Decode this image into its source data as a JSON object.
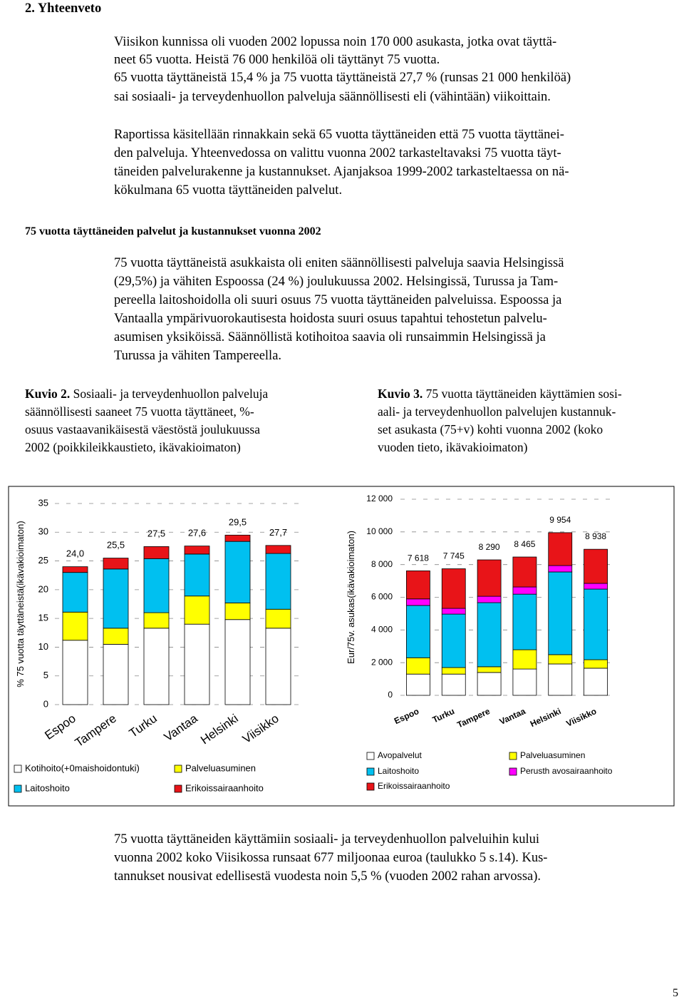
{
  "header": {
    "title": "2. Yhteenveto"
  },
  "paragraphs": [
    {
      "lines": [
        "Viisikon kunnissa oli vuoden 2002 lopussa noin 170 000 asukasta, jotka ovat täyttä-",
        "neet 65 vuotta. Heistä 76 000 henkilöä oli täyttänyt 75 vuotta.",
        "65 vuotta täyttäneistä 15,4 % ja 75 vuotta täyttäneistä 27,7 % (runsas 21 000 henkilöä)",
        "sai sosiaali- ja terveydenhuollon palveluja säännöllisesti eli (vähintään) viikoittain."
      ]
    },
    {
      "lines": [
        "Raportissa käsitellään rinnakkain sekä 65 vuotta täyttäneiden että 75 vuotta täyttänei-",
        "den palveluja. Yhteenvedossa on valittu vuonna 2002 tarkasteltavaksi 75 vuotta täyt-",
        "täneiden palvelurakenne ja kustannukset. Ajanjaksoa 1999-2002 tarkasteltaessa on nä-",
        "kökulmana 65 vuotta täyttäneiden palvelut."
      ]
    },
    {
      "lines": [
        "75 vuotta täyttäneistä asukkaista oli eniten säännöllisesti palveluja saavia Helsingissä",
        "(29,5%) ja vähiten Espoossa (24 %) joulukuussa 2002. Helsingissä, Turussa ja Tam-",
        "pereella laitoshoidolla oli suuri osuus 75 vuotta täyttäneiden palveluissa. Espoossa ja",
        "Vantaalla ympärivuorokautisesta hoidosta suuri osuus tapahtui tehostetun palvelu-",
        "asumisen yksiköissä. Säännöllistä kotihoitoa saavia oli runsaimmin Helsingissä ja",
        "Turussa ja vähiten Tampereella."
      ]
    },
    {
      "lines": [
        "75 vuotta täyttäneiden käyttämiin sosiaali- ja terveydenhuollon palveluihin kului",
        "vuonna 2002 koko Viisikossa runsaat 677 miljoonaa euroa (taulukko 5 s.14). Kus-",
        "tannukset nousivat edellisestä vuodesta noin 5,5 % (vuoden 2002 rahan arvossa)."
      ]
    }
  ],
  "section_heading": "75 vuotta täyttäneiden palvelut ja kustannukset vuonna 2002",
  "figure_2": {
    "label": "Kuvio 2.",
    "lines": [
      "Sosiaali- ja terveydenhuollon palveluja",
      "säännöllisesti saaneet 75 vuotta täyttäneet, %-",
      "osuus vastaavanikäisestä väestöstä joulukuussa",
      "2002 (poikkileikkaustieto, ikävakioimaton)"
    ]
  },
  "figure_3": {
    "label": "Kuvio 3.",
    "lines": [
      "75 vuotta täyttäneiden käyttämien sosi-",
      "aali- ja terveydenhuollon palvelujen kustannuk-",
      "set asukasta (75+v) kohti vuonna 2002 (koko",
      "vuoden tieto, ikävakioimaton)"
    ]
  },
  "page_number": "5",
  "chart_data": [
    {
      "type": "stacked_bar",
      "y_label": "% 75 vuotta täyttäneistä(ikävakioimaton)",
      "categories": [
        "Espoo",
        "Tampere",
        "Turku",
        "Vantaa",
        "Helsinki",
        "Viisikko"
      ],
      "series": [
        {
          "name": "Kotihoito(+0maishoidontuki)",
          "color": "#ffffff",
          "values": [
            11.2,
            10.5,
            13.3,
            14.0,
            14.8,
            13.3
          ]
        },
        {
          "name": "Palveluasuminen",
          "color": "#ffff00",
          "values": [
            4.9,
            2.8,
            2.7,
            4.9,
            2.9,
            3.3
          ]
        },
        {
          "name": "Laitoshoito",
          "color": "#00c0f0",
          "values": [
            6.9,
            10.3,
            9.4,
            7.3,
            10.7,
            9.7
          ]
        },
        {
          "name": "Erikoissairaanhoito",
          "color": "#e81418",
          "values": [
            1.0,
            1.9,
            2.1,
            1.4,
            1.1,
            1.4
          ]
        }
      ],
      "totals": {
        "values": [
          24.0,
          25.5,
          27.5,
          27.6,
          29.5,
          27.7
        ],
        "value_labels": [
          "24,0",
          "25,5",
          "27,5",
          "27,6",
          "29,5",
          "27,7"
        ]
      },
      "ylim": [
        0,
        35
      ],
      "yticks": [
        0,
        5,
        10,
        15,
        20,
        25,
        30,
        35
      ],
      "grid": true
    },
    {
      "type": "stacked_bar",
      "y_label": "Eur/75v. asukas(ikävakioimaton)",
      "categories": [
        "Espoo",
        "Turku",
        "Tampere",
        "Vantaa",
        "Helsinki",
        "Viisikko"
      ],
      "series": [
        {
          "name": "Avopalvelut",
          "color": "#ffffff",
          "values": [
            1300,
            1300,
            1400,
            1610,
            1920,
            1660
          ]
        },
        {
          "name": "Palveluasuminen",
          "color": "#ffff00",
          "values": [
            1000,
            400,
            350,
            1180,
            570,
            520
          ]
        },
        {
          "name": "Laitoshoito",
          "color": "#00c0f0",
          "values": [
            3200,
            3270,
            3920,
            3400,
            5060,
            4320
          ]
        },
        {
          "name": "Perusth avosairaanhoito",
          "color": "#ff00ff",
          "values": [
            400,
            350,
            390,
            440,
            390,
            350
          ]
        },
        {
          "name": "Erikoissairaanhoito",
          "color": "#e81418",
          "values": [
            1718,
            2425,
            2230,
            1835,
            2014,
            2088
          ]
        }
      ],
      "totals": {
        "values": [
          7618,
          7745,
          8290,
          8465,
          9954,
          8938
        ],
        "value_labels": [
          "7 618",
          "7 745",
          "8 290",
          "8 465",
          "9 954",
          "8 938"
        ]
      },
      "ylim": [
        0,
        12000
      ],
      "yticks": [
        0,
        {
          "value": 2000,
          "label": "2 000"
        },
        {
          "value": 4000,
          "label": "4 000"
        },
        {
          "value": 6000,
          "label": "6 000"
        },
        {
          "value": 8000,
          "label": "8 000"
        },
        {
          "value": 10000,
          "label": "10 000"
        },
        {
          "value": 12000,
          "label": "12 000"
        }
      ],
      "grid": true
    }
  ]
}
